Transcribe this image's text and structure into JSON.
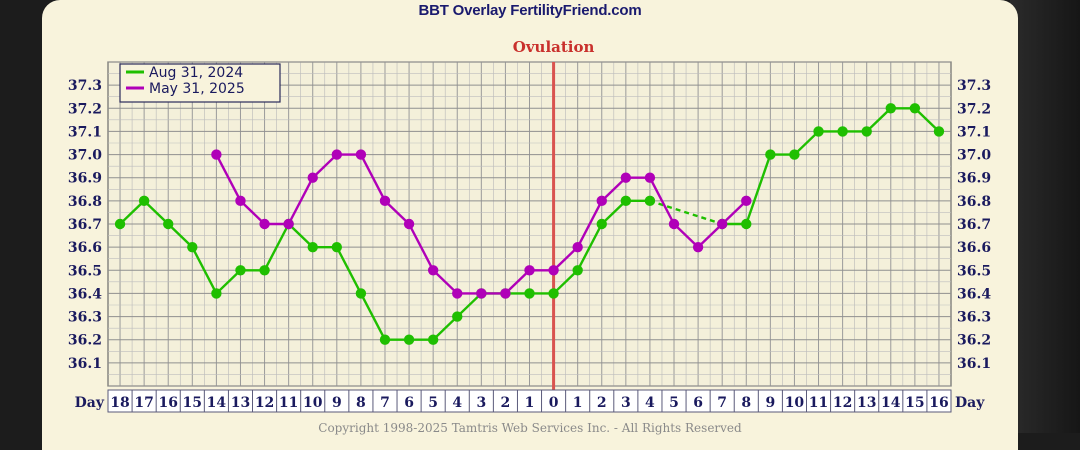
{
  "page": {
    "title": "BBT Overlay FertilityFriend.com",
    "copyright": "Copyright 1998-2025 Tamtris Web Services Inc. - All Rights Reserved"
  },
  "chart_data": {
    "type": "line",
    "title": "BBT Overlay FertilityFriend.com",
    "annotation": "Ovulation",
    "ovulation_x": "0",
    "xlabel_left": "Day",
    "xlabel_right": "Day",
    "categories": [
      "18",
      "17",
      "16",
      "15",
      "14",
      "13",
      "12",
      "11",
      "10",
      "9",
      "8",
      "7",
      "6",
      "5",
      "4",
      "3",
      "2",
      "1",
      "0",
      "1",
      "2",
      "3",
      "4",
      "5",
      "6",
      "7",
      "8",
      "9",
      "10",
      "11",
      "12",
      "13",
      "14",
      "15",
      "16"
    ],
    "yticks": [
      "36.1",
      "36.2",
      "36.3",
      "36.4",
      "36.5",
      "36.6",
      "36.7",
      "36.8",
      "36.9",
      "37.0",
      "37.1",
      "37.2",
      "37.3"
    ],
    "ylim": [
      36.0,
      37.4
    ],
    "grid": true,
    "legend_position": "top-left",
    "colors": {
      "ovulation_line": "#d9534f",
      "annotation_text": "#c9302c",
      "axis_text": "#1a1a5e"
    },
    "series": [
      {
        "name": "Aug 31, 2024",
        "color": "#1fbf00",
        "values": [
          36.7,
          36.8,
          36.7,
          36.6,
          36.4,
          36.5,
          36.5,
          36.7,
          36.6,
          36.6,
          36.4,
          36.2,
          36.2,
          36.2,
          36.3,
          36.4,
          36.4,
          36.4,
          36.4,
          36.5,
          36.7,
          36.8,
          36.8,
          null,
          null,
          36.7,
          36.7,
          37.0,
          37.0,
          37.1,
          37.1,
          37.1,
          37.2,
          37.2,
          37.1
        ],
        "dashed_segments": [
          [
            22,
            24
          ]
        ]
      },
      {
        "name": "May 31, 2025",
        "color": "#b000b8",
        "values": [
          null,
          null,
          null,
          null,
          37.0,
          36.8,
          36.7,
          36.7,
          36.9,
          37.0,
          37.0,
          36.8,
          36.7,
          36.5,
          36.4,
          36.4,
          36.4,
          36.5,
          36.5,
          36.6,
          36.8,
          36.9,
          36.9,
          36.7,
          36.6,
          36.7,
          36.8,
          null,
          null,
          null,
          null,
          null,
          null,
          null,
          null
        ]
      }
    ]
  }
}
